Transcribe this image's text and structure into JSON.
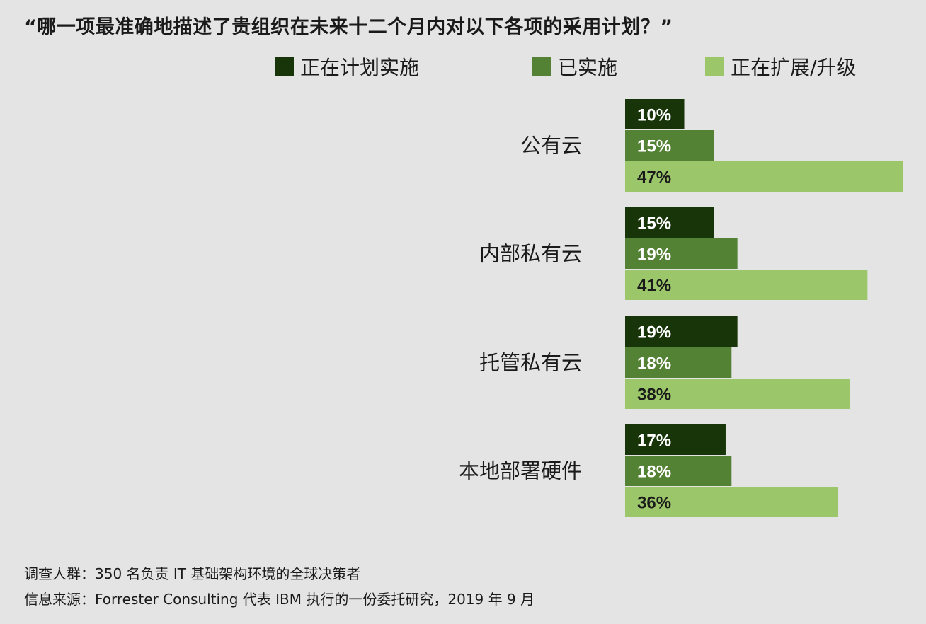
{
  "title": "“哪一项最准确地描述了贵组织在未来十二个月内对以下各项的采用计划？”",
  "colors": {
    "planning": "#173508",
    "implemented": "#548235",
    "expanding": "#9cc66a",
    "background": "#e4e4e4"
  },
  "legend": [
    {
      "label": "正在计划实施",
      "color": "#173508"
    },
    {
      "label": "已实施",
      "color": "#548235"
    },
    {
      "label": "正在扩展/升级",
      "color": "#9cc66a"
    }
  ],
  "chart_data": {
    "type": "bar",
    "orientation": "horizontal",
    "categories": [
      "公有云",
      "内部私有云",
      "托管私有云",
      "本地部署硬件"
    ],
    "series": [
      {
        "name": "正在计划实施",
        "values": [
          10,
          15,
          19,
          17
        ],
        "labels": [
          "10%",
          "15%",
          "19%",
          "17%"
        ],
        "color": "#173508",
        "label_color": "#ffffff"
      },
      {
        "name": "已实施",
        "values": [
          15,
          19,
          18,
          18
        ],
        "labels": [
          "15%",
          "19%",
          "18%",
          "18%"
        ],
        "color": "#548235",
        "label_color": "#ffffff"
      },
      {
        "name": "正在扩展/升级",
        "values": [
          47,
          41,
          38,
          36
        ],
        "labels": [
          "47%",
          "41%",
          "38%",
          "36%"
        ],
        "color": "#9cc66a",
        "label_color": "#1a1a1a"
      }
    ],
    "unit": "%",
    "legend_position": "top",
    "grid": false
  },
  "footnotes": {
    "respondents": "调查人群：350 名负责 IT 基础架构环境的全球决策者",
    "source": "信息来源：Forrester Consulting 代表 IBM 执行的一份委托研究，2019 年 9 月"
  }
}
